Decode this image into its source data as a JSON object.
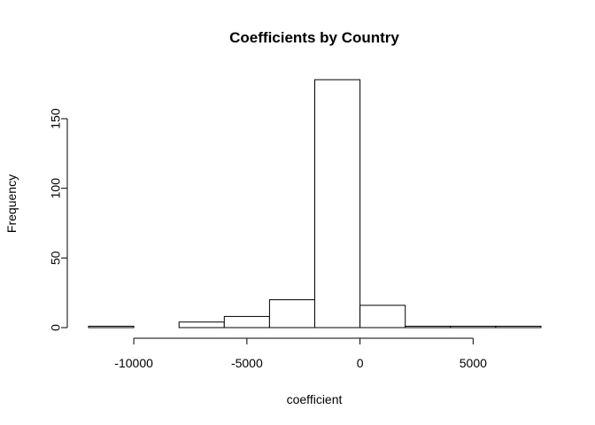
{
  "chart_data": {
    "type": "bar",
    "title": "Coefficients by Country",
    "xlabel": "coefficient",
    "ylabel": "Frequency",
    "bin_edges": [
      -12000,
      -10000,
      -8000,
      -6000,
      -4000,
      -2000,
      0,
      2000,
      4000,
      6000,
      8000
    ],
    "values": [
      1,
      0,
      4,
      8,
      20,
      178,
      16,
      1,
      1,
      1
    ],
    "x_ticks": [
      {
        "value": -10000,
        "label": "-10000"
      },
      {
        "value": -5000,
        "label": "-5000"
      },
      {
        "value": 0,
        "label": "0"
      },
      {
        "value": 5000,
        "label": "5000"
      }
    ],
    "y_ticks": [
      {
        "value": 0,
        "label": "0"
      },
      {
        "value": 50,
        "label": "50"
      },
      {
        "value": 100,
        "label": "100"
      },
      {
        "value": 150,
        "label": "150"
      }
    ],
    "xlim": [
      -12000,
      8000
    ],
    "ylim": [
      0,
      178
    ],
    "grid": false,
    "legend": "none"
  }
}
